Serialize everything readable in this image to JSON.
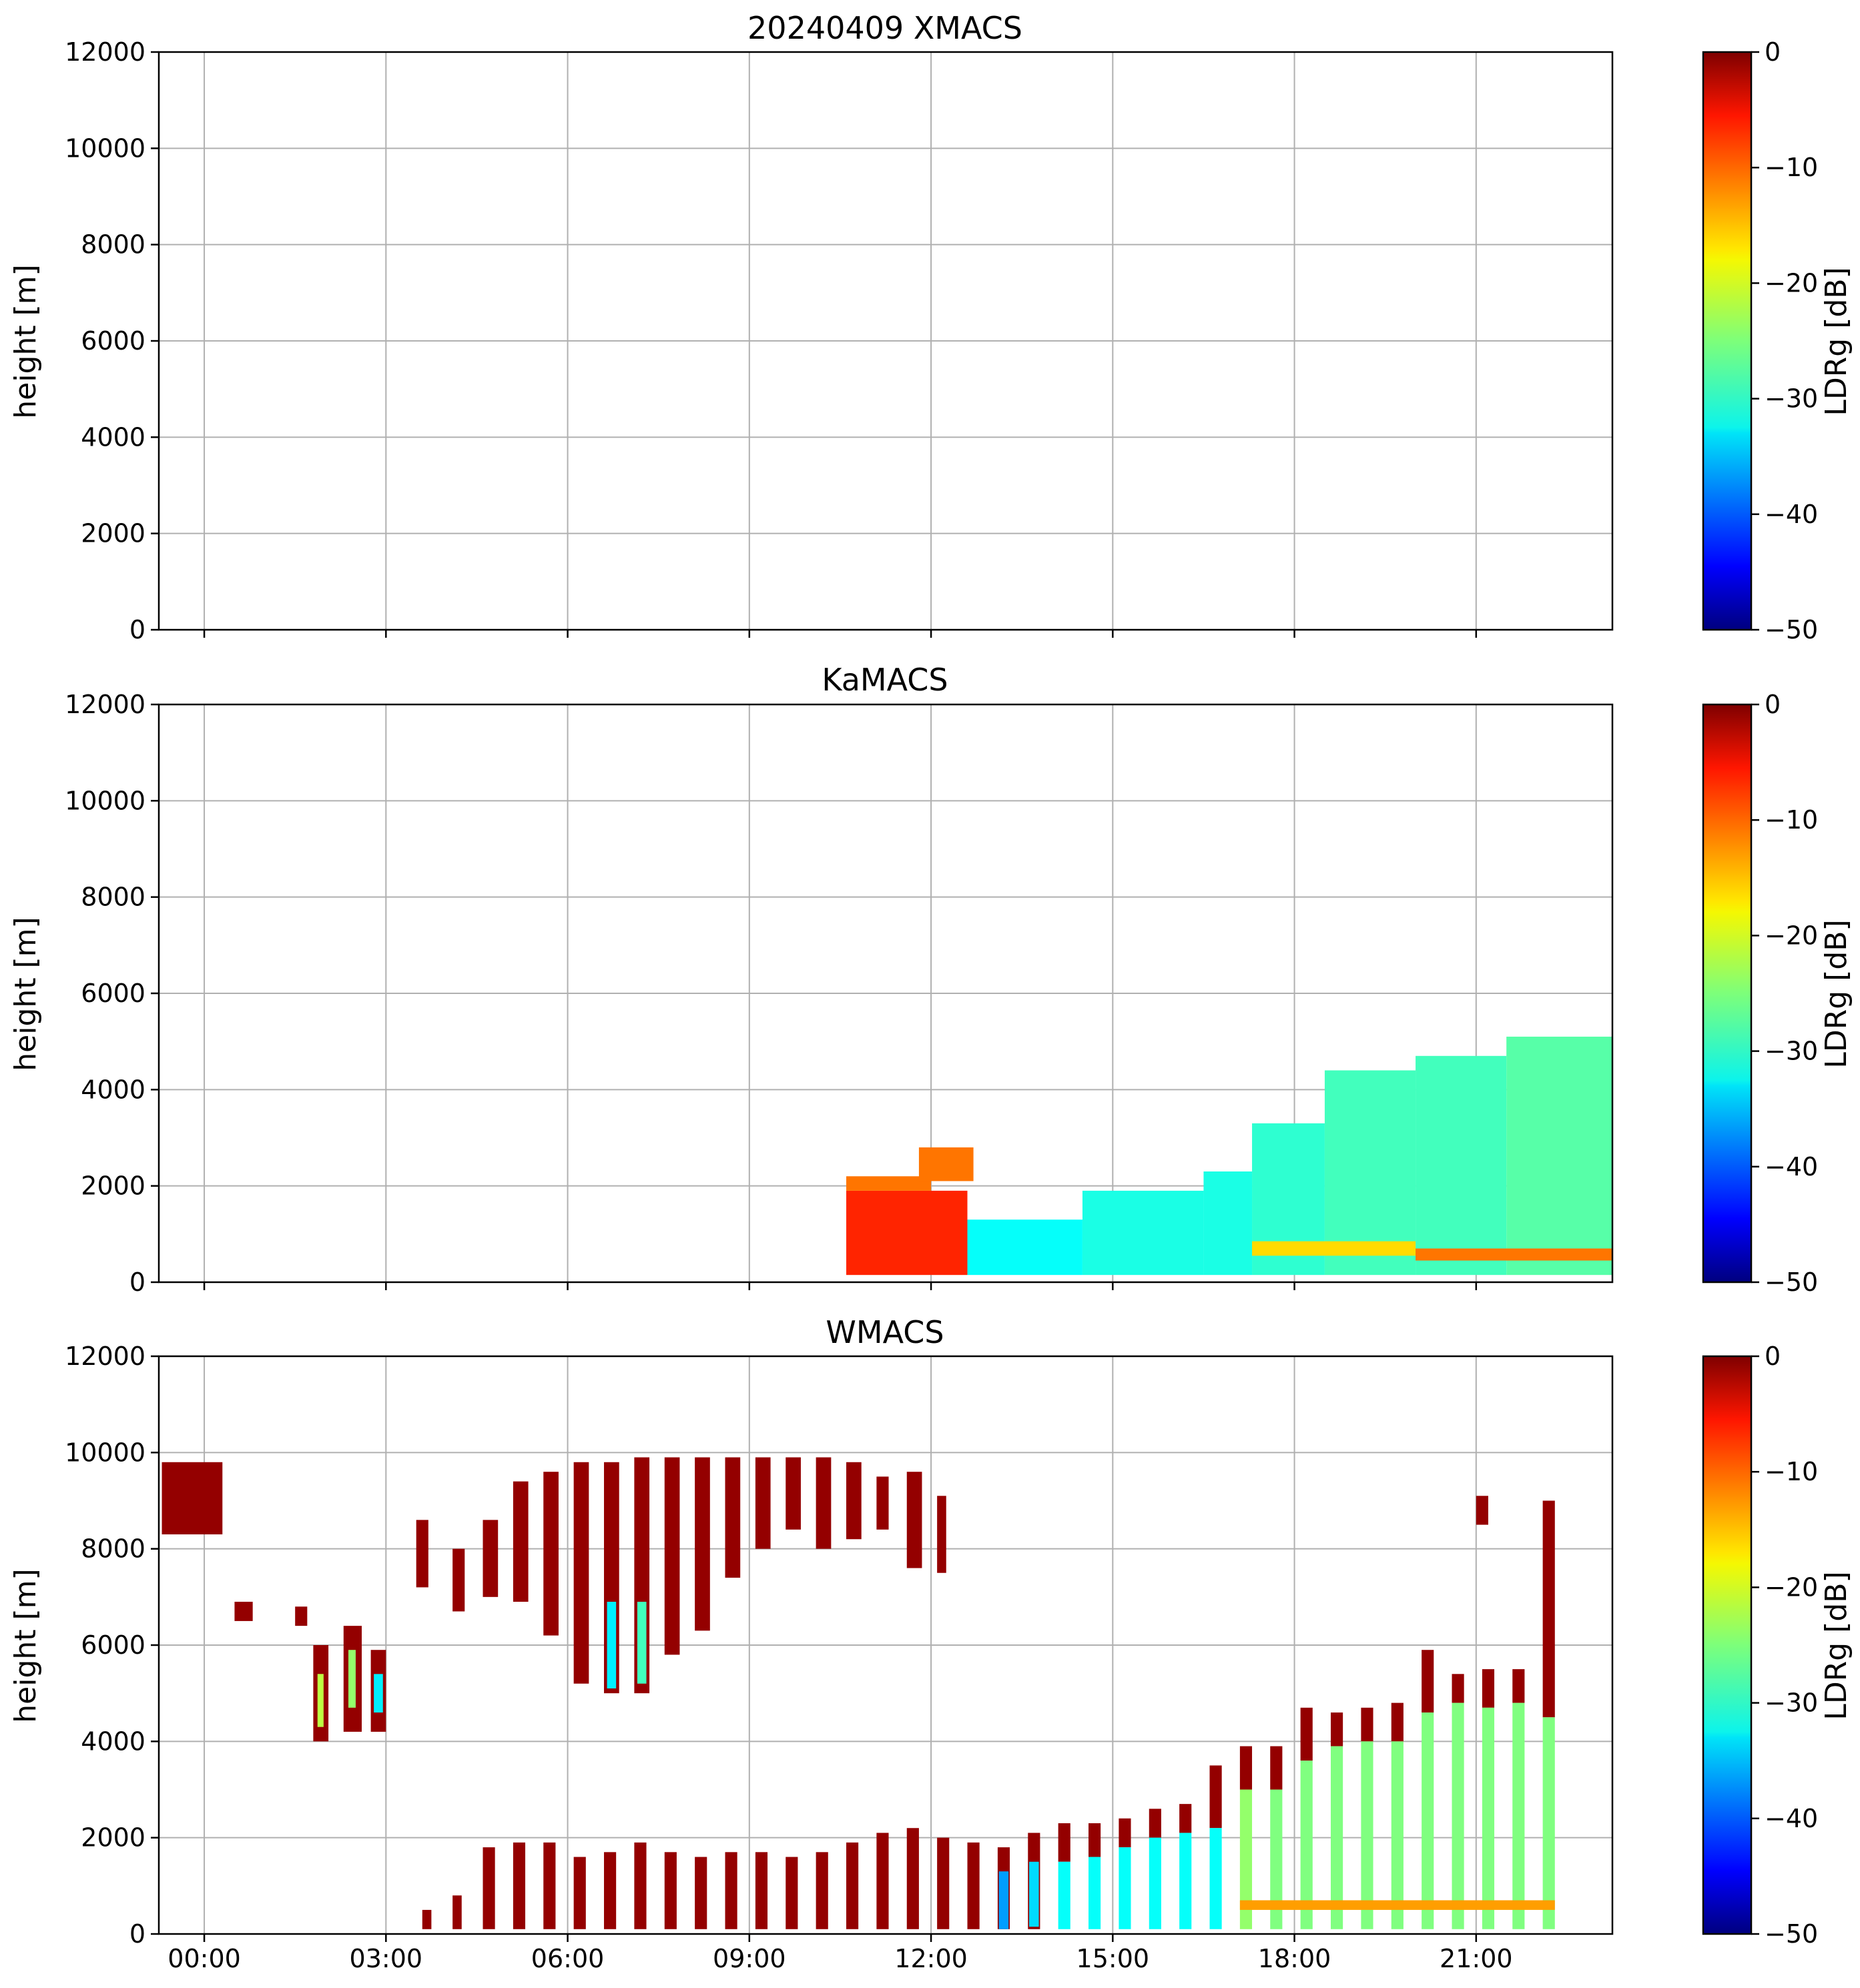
{
  "chart_data": [
    {
      "type": "heatmap",
      "title": "20240409 XMACS",
      "xlabel": "",
      "ylabel": "height [m]",
      "ylim": [
        0,
        12000
      ],
      "xlim_hours": [
        -0.75,
        23.25
      ],
      "yticks": [
        "0",
        "2000",
        "4000",
        "6000",
        "8000",
        "10000",
        "12000"
      ],
      "colorbar": {
        "label": "LDRg [dB]",
        "range": [
          -50,
          0
        ],
        "ticks": [
          "0",
          "−10",
          "−20",
          "−30",
          "−40",
          "−50"
        ]
      },
      "echo_regions": []
    },
    {
      "type": "heatmap",
      "title": "KaMACS",
      "xlabel": "",
      "ylabel": "height [m]",
      "ylim": [
        0,
        12000
      ],
      "xlim_hours": [
        -0.75,
        23.25
      ],
      "yticks": [
        "0",
        "2000",
        "4000",
        "6000",
        "8000",
        "10000",
        "12000"
      ],
      "colorbar": {
        "label": "LDRg [dB]",
        "range": [
          -50,
          0
        ],
        "ticks": [
          "0",
          "−10",
          "−20",
          "−30",
          "−40",
          "−50"
        ]
      },
      "echo_regions": [
        {
          "t0": 10.6,
          "t1": 12.6,
          "h0": 150,
          "h1": 1900,
          "ldr": -8
        },
        {
          "t0": 10.6,
          "t1": 12.0,
          "h0": 1900,
          "h1": 2200,
          "ldr": -12
        },
        {
          "t0": 11.8,
          "t1": 12.7,
          "h0": 2100,
          "h1": 2800,
          "ldr": -12
        },
        {
          "t0": 12.6,
          "t1": 14.5,
          "h0": 150,
          "h1": 1300,
          "ldr": -31
        },
        {
          "t0": 14.5,
          "t1": 16.5,
          "h0": 150,
          "h1": 1900,
          "ldr": -30
        },
        {
          "t0": 16.5,
          "t1": 17.3,
          "h0": 150,
          "h1": 2300,
          "ldr": -30
        },
        {
          "t0": 17.3,
          "t1": 18.5,
          "h0": 150,
          "h1": 3300,
          "ldr": -29
        },
        {
          "t0": 18.5,
          "t1": 20.0,
          "h0": 150,
          "h1": 4400,
          "ldr": -28
        },
        {
          "t0": 20.0,
          "t1": 21.5,
          "h0": 150,
          "h1": 4700,
          "ldr": -28
        },
        {
          "t0": 21.5,
          "t1": 23.25,
          "h0": 150,
          "h1": 5100,
          "ldr": -27
        },
        {
          "t0": 17.3,
          "t1": 20.0,
          "h0": 550,
          "h1": 850,
          "ldr": -17
        },
        {
          "t0": 20.0,
          "t1": 23.25,
          "h0": 450,
          "h1": 700,
          "ldr": -12
        }
      ]
    },
    {
      "type": "heatmap",
      "title": "WMACS",
      "xlabel": "",
      "ylabel": "height [m]",
      "ylim": [
        0,
        12000
      ],
      "xlim_hours": [
        -0.75,
        23.25
      ],
      "yticks": [
        "0",
        "2000",
        "4000",
        "6000",
        "8000",
        "10000",
        "12000"
      ],
      "xticks": [
        "00:00",
        "03:00",
        "06:00",
        "09:00",
        "12:00",
        "15:00",
        "18:00",
        "21:00"
      ],
      "colorbar": {
        "label": "LDRg [dB]",
        "range": [
          -50,
          0
        ],
        "ticks": [
          "0",
          "−10",
          "−20",
          "−30",
          "−40",
          "−50"
        ]
      },
      "echo_regions": [
        {
          "t0": -0.7,
          "t1": 0.3,
          "h0": 8300,
          "h1": 9800,
          "ldr": -1
        },
        {
          "t0": 0.5,
          "t1": 0.8,
          "h0": 6500,
          "h1": 6900,
          "ldr": -1
        },
        {
          "t0": 1.5,
          "t1": 1.7,
          "h0": 6400,
          "h1": 6800,
          "ldr": -1
        },
        {
          "t0": 1.8,
          "t1": 2.05,
          "h0": 4000,
          "h1": 6000,
          "ldr": -1
        },
        {
          "t0": 1.87,
          "t1": 1.97,
          "h0": 4300,
          "h1": 5400,
          "ldr": -22
        },
        {
          "t0": 2.3,
          "t1": 2.6,
          "h0": 4200,
          "h1": 6400,
          "ldr": -1
        },
        {
          "t0": 2.38,
          "t1": 2.5,
          "h0": 4700,
          "h1": 5900,
          "ldr": -24
        },
        {
          "t0": 2.75,
          "t1": 3.0,
          "h0": 4200,
          "h1": 5900,
          "ldr": -1
        },
        {
          "t0": 2.8,
          "t1": 2.95,
          "h0": 4600,
          "h1": 5400,
          "ldr": -32
        },
        {
          "t0": 3.5,
          "t1": 3.7,
          "h0": 7200,
          "h1": 8600,
          "ldr": -1
        },
        {
          "t0": 4.1,
          "t1": 4.3,
          "h0": 6700,
          "h1": 8000,
          "ldr": -1
        },
        {
          "t0": 4.6,
          "t1": 4.85,
          "h0": 7000,
          "h1": 8600,
          "ldr": -1
        },
        {
          "t0": 5.1,
          "t1": 5.35,
          "h0": 6900,
          "h1": 9400,
          "ldr": -1
        },
        {
          "t0": 5.6,
          "t1": 5.85,
          "h0": 6200,
          "h1": 9600,
          "ldr": -1
        },
        {
          "t0": 6.1,
          "t1": 6.35,
          "h0": 5200,
          "h1": 9800,
          "ldr": -1
        },
        {
          "t0": 6.6,
          "t1": 6.85,
          "h0": 5000,
          "h1": 9800,
          "ldr": -1
        },
        {
          "t0": 6.65,
          "t1": 6.8,
          "h0": 5100,
          "h1": 6900,
          "ldr": -32
        },
        {
          "t0": 7.1,
          "t1": 7.35,
          "h0": 5000,
          "h1": 9900,
          "ldr": -1
        },
        {
          "t0": 7.15,
          "t1": 7.3,
          "h0": 5200,
          "h1": 6900,
          "ldr": -28
        },
        {
          "t0": 7.6,
          "t1": 7.85,
          "h0": 5800,
          "h1": 9900,
          "ldr": -1
        },
        {
          "t0": 8.1,
          "t1": 8.35,
          "h0": 6300,
          "h1": 9900,
          "ldr": -1
        },
        {
          "t0": 8.6,
          "t1": 8.85,
          "h0": 7400,
          "h1": 9900,
          "ldr": -1
        },
        {
          "t0": 9.1,
          "t1": 9.35,
          "h0": 8000,
          "h1": 9900,
          "ldr": -1
        },
        {
          "t0": 9.6,
          "t1": 9.85,
          "h0": 8400,
          "h1": 9900,
          "ldr": -1
        },
        {
          "t0": 10.1,
          "t1": 10.35,
          "h0": 8000,
          "h1": 9900,
          "ldr": -1
        },
        {
          "t0": 10.6,
          "t1": 10.85,
          "h0": 8200,
          "h1": 9800,
          "ldr": -1
        },
        {
          "t0": 11.1,
          "t1": 11.3,
          "h0": 8400,
          "h1": 9500,
          "ldr": -1
        },
        {
          "t0": 11.6,
          "t1": 11.85,
          "h0": 7600,
          "h1": 9600,
          "ldr": -1
        },
        {
          "t0": 12.1,
          "t1": 12.25,
          "h0": 7500,
          "h1": 9100,
          "ldr": -1
        },
        {
          "t0": 3.6,
          "t1": 3.75,
          "h0": 100,
          "h1": 500,
          "ldr": -1
        },
        {
          "t0": 4.1,
          "t1": 4.25,
          "h0": 100,
          "h1": 800,
          "ldr": -1
        },
        {
          "t0": 4.6,
          "t1": 4.8,
          "h0": 100,
          "h1": 1800,
          "ldr": -1
        },
        {
          "t0": 5.1,
          "t1": 5.3,
          "h0": 100,
          "h1": 1900,
          "ldr": -1
        },
        {
          "t0": 5.6,
          "t1": 5.8,
          "h0": 100,
          "h1": 1900,
          "ldr": -1
        },
        {
          "t0": 6.1,
          "t1": 6.3,
          "h0": 100,
          "h1": 1600,
          "ldr": -1
        },
        {
          "t0": 6.6,
          "t1": 6.8,
          "h0": 100,
          "h1": 1700,
          "ldr": -1
        },
        {
          "t0": 7.1,
          "t1": 7.3,
          "h0": 100,
          "h1": 1900,
          "ldr": -1
        },
        {
          "t0": 7.6,
          "t1": 7.8,
          "h0": 100,
          "h1": 1700,
          "ldr": -1
        },
        {
          "t0": 8.1,
          "t1": 8.3,
          "h0": 100,
          "h1": 1600,
          "ldr": -1
        },
        {
          "t0": 8.6,
          "t1": 8.8,
          "h0": 100,
          "h1": 1700,
          "ldr": -1
        },
        {
          "t0": 9.1,
          "t1": 9.3,
          "h0": 100,
          "h1": 1700,
          "ldr": -1
        },
        {
          "t0": 9.6,
          "t1": 9.8,
          "h0": 100,
          "h1": 1600,
          "ldr": -1
        },
        {
          "t0": 10.1,
          "t1": 10.3,
          "h0": 100,
          "h1": 1700,
          "ldr": -1
        },
        {
          "t0": 10.6,
          "t1": 10.8,
          "h0": 100,
          "h1": 1900,
          "ldr": -1
        },
        {
          "t0": 11.1,
          "t1": 11.3,
          "h0": 100,
          "h1": 2100,
          "ldr": -1
        },
        {
          "t0": 11.6,
          "t1": 11.8,
          "h0": 100,
          "h1": 2200,
          "ldr": -1
        },
        {
          "t0": 12.1,
          "t1": 12.3,
          "h0": 100,
          "h1": 2000,
          "ldr": -1
        },
        {
          "t0": 12.6,
          "t1": 12.8,
          "h0": 100,
          "h1": 1900,
          "ldr": -1
        },
        {
          "t0": 13.1,
          "t1": 13.3,
          "h0": 100,
          "h1": 1800,
          "ldr": -1
        },
        {
          "t0": 13.12,
          "t1": 13.28,
          "h0": 100,
          "h1": 1300,
          "ldr": -36
        },
        {
          "t0": 13.6,
          "t1": 13.8,
          "h0": 100,
          "h1": 2100,
          "ldr": -1
        },
        {
          "t0": 13.62,
          "t1": 13.78,
          "h0": 150,
          "h1": 1500,
          "ldr": -33
        },
        {
          "t0": 14.1,
          "t1": 14.3,
          "h0": 1500,
          "h1": 2300,
          "ldr": -1
        },
        {
          "t0": 14.1,
          "t1": 14.3,
          "h0": 100,
          "h1": 1500,
          "ldr": -31
        },
        {
          "t0": 14.6,
          "t1": 14.8,
          "h0": 1600,
          "h1": 2300,
          "ldr": -1
        },
        {
          "t0": 14.6,
          "t1": 14.8,
          "h0": 100,
          "h1": 1600,
          "ldr": -31
        },
        {
          "t0": 15.1,
          "t1": 15.3,
          "h0": 1800,
          "h1": 2400,
          "ldr": -1
        },
        {
          "t0": 15.1,
          "t1": 15.3,
          "h0": 100,
          "h1": 1800,
          "ldr": -31
        },
        {
          "t0": 15.6,
          "t1": 15.8,
          "h0": 2000,
          "h1": 2600,
          "ldr": -1
        },
        {
          "t0": 15.6,
          "t1": 15.8,
          "h0": 100,
          "h1": 2000,
          "ldr": -31
        },
        {
          "t0": 16.1,
          "t1": 16.3,
          "h0": 2100,
          "h1": 2700,
          "ldr": -1
        },
        {
          "t0": 16.1,
          "t1": 16.3,
          "h0": 100,
          "h1": 2100,
          "ldr": -31
        },
        {
          "t0": 16.6,
          "t1": 16.8,
          "h0": 2200,
          "h1": 3500,
          "ldr": -1
        },
        {
          "t0": 16.6,
          "t1": 16.8,
          "h0": 100,
          "h1": 2200,
          "ldr": -31
        },
        {
          "t0": 17.1,
          "t1": 17.3,
          "h0": 3000,
          "h1": 3900,
          "ldr": -1
        },
        {
          "t0": 17.1,
          "t1": 17.3,
          "h0": 100,
          "h1": 3000,
          "ldr": -24
        },
        {
          "t0": 17.6,
          "t1": 17.8,
          "h0": 3000,
          "h1": 3900,
          "ldr": -1
        },
        {
          "t0": 17.6,
          "t1": 17.8,
          "h0": 100,
          "h1": 3000,
          "ldr": -25
        },
        {
          "t0": 18.1,
          "t1": 18.3,
          "h0": 3600,
          "h1": 4700,
          "ldr": -1
        },
        {
          "t0": 18.1,
          "t1": 18.3,
          "h0": 100,
          "h1": 3600,
          "ldr": -25
        },
        {
          "t0": 18.6,
          "t1": 18.8,
          "h0": 3900,
          "h1": 4600,
          "ldr": -1
        },
        {
          "t0": 18.6,
          "t1": 18.8,
          "h0": 100,
          "h1": 3900,
          "ldr": -25
        },
        {
          "t0": 19.1,
          "t1": 19.3,
          "h0": 4000,
          "h1": 4700,
          "ldr": -1
        },
        {
          "t0": 19.1,
          "t1": 19.3,
          "h0": 100,
          "h1": 4000,
          "ldr": -25
        },
        {
          "t0": 19.6,
          "t1": 19.8,
          "h0": 4000,
          "h1": 4800,
          "ldr": -1
        },
        {
          "t0": 19.6,
          "t1": 19.8,
          "h0": 100,
          "h1": 4000,
          "ldr": -25
        },
        {
          "t0": 20.1,
          "t1": 20.3,
          "h0": 4600,
          "h1": 5900,
          "ldr": -1
        },
        {
          "t0": 20.1,
          "t1": 20.3,
          "h0": 100,
          "h1": 4600,
          "ldr": -25
        },
        {
          "t0": 20.6,
          "t1": 20.8,
          "h0": 4800,
          "h1": 5400,
          "ldr": -1
        },
        {
          "t0": 20.6,
          "t1": 20.8,
          "h0": 100,
          "h1": 4800,
          "ldr": -25
        },
        {
          "t0": 21.1,
          "t1": 21.3,
          "h0": 4700,
          "h1": 5500,
          "ldr": -1
        },
        {
          "t0": 21.1,
          "t1": 21.3,
          "h0": 100,
          "h1": 4700,
          "ldr": -25
        },
        {
          "t0": 21.6,
          "t1": 21.8,
          "h0": 4800,
          "h1": 5500,
          "ldr": -1
        },
        {
          "t0": 21.6,
          "t1": 21.8,
          "h0": 100,
          "h1": 4800,
          "ldr": -25
        },
        {
          "t0": 22.1,
          "t1": 22.3,
          "h0": 4500,
          "h1": 9000,
          "ldr": -1
        },
        {
          "t0": 22.1,
          "t1": 22.3,
          "h0": 100,
          "h1": 4500,
          "ldr": -25
        },
        {
          "t0": 17.1,
          "t1": 22.3,
          "h0": 500,
          "h1": 700,
          "ldr": -14
        },
        {
          "t0": 21.0,
          "t1": 21.2,
          "h0": 8500,
          "h1": 9100,
          "ldr": -1
        }
      ]
    }
  ]
}
